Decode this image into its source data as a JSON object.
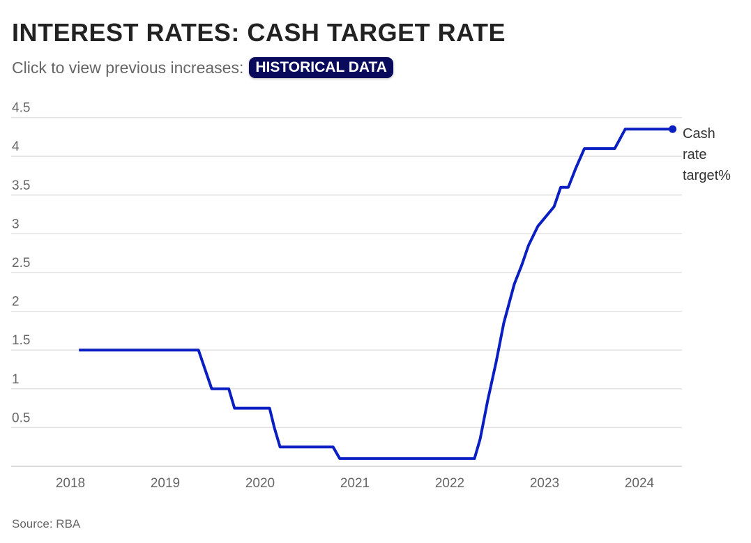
{
  "header": {
    "title": "INTEREST RATES: CASH TARGET RATE",
    "subtitle": "Click to view previous increases:",
    "button_label": "HISTORICAL DATA",
    "button_color": "#0a0a5c"
  },
  "footer": {
    "source": "Source: RBA"
  },
  "chart_data": {
    "type": "line",
    "title": "INTEREST RATES: CASH TARGET RATE",
    "xlabel": "",
    "ylabel": "",
    "xlim": [
      2017.9,
      2024.45
    ],
    "ylim": [
      0,
      4.5
    ],
    "grid": true,
    "y_ticks": [
      "0.5",
      "1",
      "1.5",
      "2",
      "2.5",
      "3",
      "3.5",
      "4",
      "4.5"
    ],
    "x_ticks": [
      "2018",
      "2019",
      "2020",
      "2021",
      "2022",
      "2023",
      "2024"
    ],
    "series": [
      {
        "name": "Cash rate target%",
        "label_lines": [
          "Cash",
          "rate",
          "target%"
        ],
        "color": "#0a1fc2",
        "points": [
          [
            2018.09,
            1.5
          ],
          [
            2019.35,
            1.5
          ],
          [
            2019.49,
            1.0
          ],
          [
            2019.67,
            1.0
          ],
          [
            2019.73,
            0.75
          ],
          [
            2020.1,
            0.75
          ],
          [
            2020.15,
            0.5
          ],
          [
            2020.21,
            0.25
          ],
          [
            2020.77,
            0.25
          ],
          [
            2020.84,
            0.1
          ],
          [
            2022.26,
            0.1
          ],
          [
            2022.32,
            0.35
          ],
          [
            2022.4,
            0.85
          ],
          [
            2022.49,
            1.35
          ],
          [
            2022.57,
            1.85
          ],
          [
            2022.68,
            2.35
          ],
          [
            2022.76,
            2.6
          ],
          [
            2022.83,
            2.85
          ],
          [
            2022.93,
            3.1
          ],
          [
            2023.1,
            3.35
          ],
          [
            2023.17,
            3.6
          ],
          [
            2023.25,
            3.6
          ],
          [
            2023.33,
            3.85
          ],
          [
            2023.42,
            4.1
          ],
          [
            2023.74,
            4.1
          ],
          [
            2023.85,
            4.35
          ],
          [
            2024.35,
            4.35
          ]
        ]
      }
    ]
  }
}
